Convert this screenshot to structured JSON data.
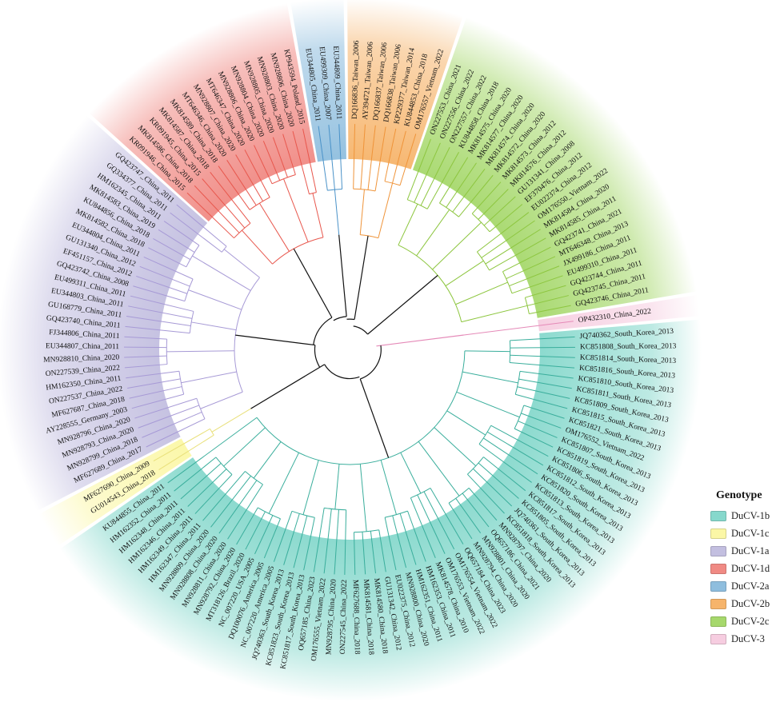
{
  "legend": {
    "title": "Genotype",
    "items": [
      {
        "key": "1b",
        "label": "DuCV-1b",
        "color": "#86d8cc"
      },
      {
        "key": "1c",
        "label": "DuCV-1c",
        "color": "#fbf7a6"
      },
      {
        "key": "1a",
        "label": "DuCV-1a",
        "color": "#c3bfe0"
      },
      {
        "key": "1d",
        "label": "DuCV-1d",
        "color": "#f08a84"
      },
      {
        "key": "2a",
        "label": "DuCV-2a",
        "color": "#8fbede"
      },
      {
        "key": "2b",
        "label": "DuCV-2b",
        "color": "#f6b46b"
      },
      {
        "key": "2c",
        "label": "DuCV-2c",
        "color": "#a6d86c"
      },
      {
        "key": "3",
        "label": "DuCV-3",
        "color": "#f6cde0"
      }
    ]
  },
  "branch_colors": {
    "1a": "#a79ad6",
    "1b": "#3aae9c",
    "1c": "#e9e07a",
    "1d": "#e8574d",
    "2a": "#4a92c8",
    "2b": "#ef943a",
    "2c": "#8dc63f",
    "3": "#e58ab8",
    "root": "#111111"
  },
  "clades": [
    {
      "key": "3",
      "leaves": [
        "OP432310_China_2022"
      ]
    },
    {
      "key": "1b",
      "leaves": [
        "JQ740362_South_Korea_2013",
        "KC851808_South_Korea_2013",
        "KC851814_South_Korea_2013",
        "KC851816_South_Korea_2013",
        "KC851810_South_Korea_2013",
        "KC851811_South_Korea_2013",
        "KC851809_South_Korea_2013",
        "KC851815_South_Korea_2013",
        "KC851821_South_Korea_2013",
        "OM176552_Vietnam_2022",
        "KC851807_South_Korea_2013",
        "KC851819_South_Korea_2013",
        "KC851806_South_Korea_2013",
        "KC851812_South_Korea_2013",
        "KC851820_South_Korea_2013",
        "KC851813_South_Korea_2013",
        "KC851817_South_Korea_2013",
        "KC851805_South_Korea_2013",
        "JQ740361_South_Korea_2013",
        "KC851818_South_Korea_2013",
        "MN928797_China_2020",
        "OQ657186_China_2021",
        "MN928801_China_2020",
        "MN928794_China_2020",
        "OQ657184_China_2023",
        "OM176554_Vietnam_2022",
        "OM176553_Vietnam_2022",
        "MK814578_China_2010",
        "HM162353_China_2011",
        "HM162351_China_2011",
        "MN928800_China_2020",
        "EU022375_China_2012",
        "GU131342_China_2012",
        "MK814580_China_2018",
        "MK814581_China_2018",
        "MF627688_China_2018",
        "ON227545_China_2022",
        "MN928795_China_2020",
        "OM176555_Vietnam_2022",
        "OQ657185_China_2023",
        "KC851817_South_Korea_2013",
        "KC851823_South_Korea_2013",
        "JQ740363_South_Korea_2013",
        "NC_007220_America_2005",
        "DQ100076_America_2005",
        "NC_007220_USA_2005",
        "MT318126_Brazil_2020",
        "MN928792_China_2020",
        "MN928811_China_2020",
        "MN928808_China_2020",
        "MN928809_China_2020",
        "HM162347_China_2011",
        "HM162349_China_2011",
        "HM162346_China_2011",
        "HM162348_China_2011",
        "HM162352_China_2011",
        "KU844855_China_2011"
      ]
    },
    {
      "key": "1c",
      "leaves": [
        "GU014543_China_2018",
        "MF627690_China_2009"
      ]
    },
    {
      "key": "1a",
      "leaves": [
        "MF627689_China_2017",
        "MN928799_China_2018",
        "MN928793_China_2020",
        "MN928796_China_2020",
        "AY228555_Germany_2003",
        "MF627687_China_2018",
        "ON227537_China_2022",
        "HM162350_China_2011",
        "ON227539_China_2022",
        "MN928810_China_2020",
        "EU344807_China_2011",
        "FJ344806_China_2011",
        "GQ423740_China_2011",
        "GU168779_China_2011",
        "EU344803_China_2011",
        "EU499311_China_2011",
        "GQ423742_China_2008",
        "EF451157_China_2012",
        "GU131340_China_2012",
        "EU344804_China_2011",
        "MK814582_China_2018",
        "KU844856_China_2018",
        "MK814583_China_2019",
        "HM162345_China_2011",
        "GQ334377_China_2011",
        "GQ423747_China_2011"
      ]
    },
    {
      "key": "1d",
      "leaves": [
        "KR091946_China_2015",
        "MK814586_China_2018",
        "KR091945_China_2015",
        "MK814587_China_2018",
        "MK814589_China_2018",
        "MT646346_China_2020",
        "MN928807_China_2020",
        "MT646347_China_2020",
        "MN928806_China_2020",
        "MN928804_China_2020",
        "MN928805_China_2020",
        "MN928803_China_2020",
        "MN928806_China_2020",
        "KP943594_Poland_2015"
      ]
    },
    {
      "key": "2a",
      "leaves": [
        "EU344805_China_2011",
        "EU499309_China_2007",
        "EU344809_China_2011"
      ]
    },
    {
      "key": "2b",
      "leaves": [
        "DQ166836_Taiwan_2006",
        "AY394721_Taiwan_2006",
        "DQ166837_Taiwan_2006",
        "DQ166838_Taiwan_2006",
        "KP229377_Taiwan_2014",
        "KU844853_China_2018",
        "OM176557_Vietnam_2022"
      ]
    },
    {
      "key": "2c",
      "leaves": [
        "ON227553_China_2021",
        "ON227556_China_2022",
        "ON227557_China_2022",
        "KU844858_China_2018",
        "MK814575_China_2020",
        "MK814577_China_2020",
        "MK814574_China_2020",
        "MK814572_China_2020",
        "MK814573_China_2012",
        "MK814576_China_2012",
        "GU131341_China_2008",
        "EF370476_China_2012",
        "EU022374_China_2012",
        "OM176550_Vietnam_2022",
        "MK814584_China_2020",
        "MK814585_China_2011",
        "GQ423741_China_2021",
        "MT646348_China_2013",
        "JX499186_China_2011",
        "EU499310_China_2011",
        "GQ423744_China_2011",
        "GQ423745_China_2011",
        "GQ423746_China_2011"
      ]
    }
  ]
}
